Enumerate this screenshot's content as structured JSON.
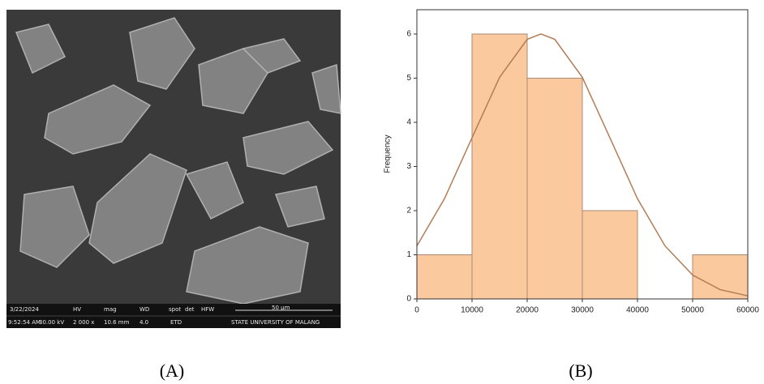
{
  "sem_image": {
    "info_top": [
      "3/22/2024",
      "HV",
      "mag",
      "WD",
      "spot",
      "det",
      "HFW"
    ],
    "info_bottom": [
      "9:52:54 AM",
      "30.00 kV",
      "2 000 x",
      "10.6 mm",
      "4.0",
      "ETD",
      "50 μm",
      "STATE UNIVERSITY OF MALANG"
    ]
  },
  "panel_labels": [
    "(A)",
    "(B)"
  ],
  "chart_data": {
    "type": "histogram",
    "y_label": "Frequency",
    "bins": [
      0,
      10000,
      20000,
      30000,
      40000,
      50000,
      60000
    ],
    "counts": [
      1,
      6,
      5,
      2,
      0,
      1
    ],
    "color": "#fbc99e",
    "edge_color": "#a88a74",
    "curve": {
      "x": [
        0,
        5000,
        10000,
        15000,
        20000,
        22500,
        25000,
        30000,
        35000,
        40000,
        45000,
        50000,
        55000,
        60000
      ],
      "values": [
        1.2,
        2.27,
        3.65,
        5.02,
        5.88,
        6,
        5.88,
        5.02,
        3.65,
        2.27,
        1.2,
        0.54,
        0.21,
        0.07
      ],
      "color": "#b47c56"
    },
    "xlim": [
      0,
      60000
    ],
    "ylim": [
      0,
      6.55
    ],
    "xticks": [
      0,
      10000,
      20000,
      30000,
      40000,
      50000,
      60000
    ],
    "yticks": [
      0,
      1,
      2,
      3,
      4,
      5,
      6
    ]
  }
}
